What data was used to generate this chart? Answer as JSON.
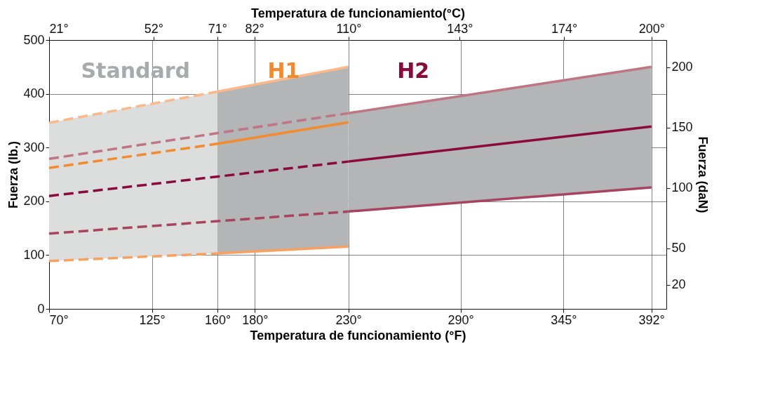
{
  "chart_data": {
    "type": "line",
    "xlabel": "Temperatura de funcionamiento (°F)",
    "x2label": "Temperatura de funcionamiento(°C)",
    "ylabel": "Fuerza (lb.)",
    "y2label": "Fuerza (daN)",
    "xlim": [
      70,
      400
    ],
    "xticks": [
      {
        "value": 70,
        "label": "70°"
      },
      {
        "value": 125,
        "label": "125°"
      },
      {
        "value": 160,
        "label": "160°"
      },
      {
        "value": 180,
        "label": "180°"
      },
      {
        "value": 230,
        "label": "230°"
      },
      {
        "value": 290,
        "label": "290°"
      },
      {
        "value": 345,
        "label": "345°"
      },
      {
        "value": 392,
        "label": "392°"
      }
    ],
    "x2lim": [
      21,
      204.4
    ],
    "x2ticks": [
      {
        "value": 21,
        "label": "21°"
      },
      {
        "value": 52,
        "label": "52°"
      },
      {
        "value": 71,
        "label": "71°"
      },
      {
        "value": 82,
        "label": "82°"
      },
      {
        "value": 110,
        "label": "110°"
      },
      {
        "value": 143,
        "label": "143°"
      },
      {
        "value": 174,
        "label": "174°"
      },
      {
        "value": 200,
        "label": "200°"
      }
    ],
    "ylim": [
      0,
      500
    ],
    "yticks": [
      0,
      100,
      200,
      300,
      400,
      500
    ],
    "y2lim": [
      0,
      222.4
    ],
    "y2ticks": [
      20,
      50,
      100,
      150,
      200
    ],
    "grid": true,
    "series": [
      {
        "color": "#fbb98a",
        "line_style": "dashed",
        "x": [
          70,
          160
        ],
        "values": [
          346,
          404
        ]
      },
      {
        "color": "#fbb98a",
        "line_style": "solid",
        "x": [
          160,
          230
        ],
        "values": [
          404,
          450
        ]
      },
      {
        "color": "#f28a2e",
        "line_style": "dashed",
        "x": [
          70,
          160
        ],
        "values": [
          262,
          307
        ],
        "lower": [
          89,
          103
        ],
        "upper": [
          346,
          404
        ]
      },
      {
        "color": "#f28a2e",
        "line_style": "solid",
        "x": [
          160,
          230
        ],
        "values": [
          307,
          347
        ],
        "lower": [
          103,
          116
        ],
        "upper": [
          404,
          450
        ]
      },
      {
        "color": "#f8a060",
        "line_style": "dashed",
        "x": [
          70,
          160
        ],
        "values": [
          89,
          103
        ]
      },
      {
        "color": "#f8a060",
        "line_style": "solid",
        "x": [
          160,
          230
        ],
        "values": [
          103,
          116
        ]
      },
      {
        "color": "#c07585",
        "line_style": "dashed",
        "x": [
          70,
          230
        ],
        "values": [
          279,
          364
        ]
      },
      {
        "color": "#c07585",
        "line_style": "solid",
        "x": [
          230,
          392
        ],
        "values": [
          364,
          450
        ]
      },
      {
        "color": "#8b0a3c",
        "line_style": "dashed",
        "x": [
          70,
          230
        ],
        "values": [
          210,
          274
        ]
      },
      {
        "color": "#8b0a3c",
        "line_style": "solid",
        "x": [
          230,
          392
        ],
        "values": [
          274,
          339
        ],
        "lower": [
          181,
          226
        ],
        "upper": [
          364,
          450
        ]
      },
      {
        "color": "#a8445f",
        "line_style": "dashed",
        "x": [
          70,
          230
        ],
        "values": [
          140,
          181
        ]
      },
      {
        "color": "#a8445f",
        "line_style": "solid",
        "x": [
          230,
          392
        ],
        "values": [
          181,
          226
        ]
      }
    ],
    "annotations": [
      "Standard",
      "H1",
      "H2"
    ]
  }
}
